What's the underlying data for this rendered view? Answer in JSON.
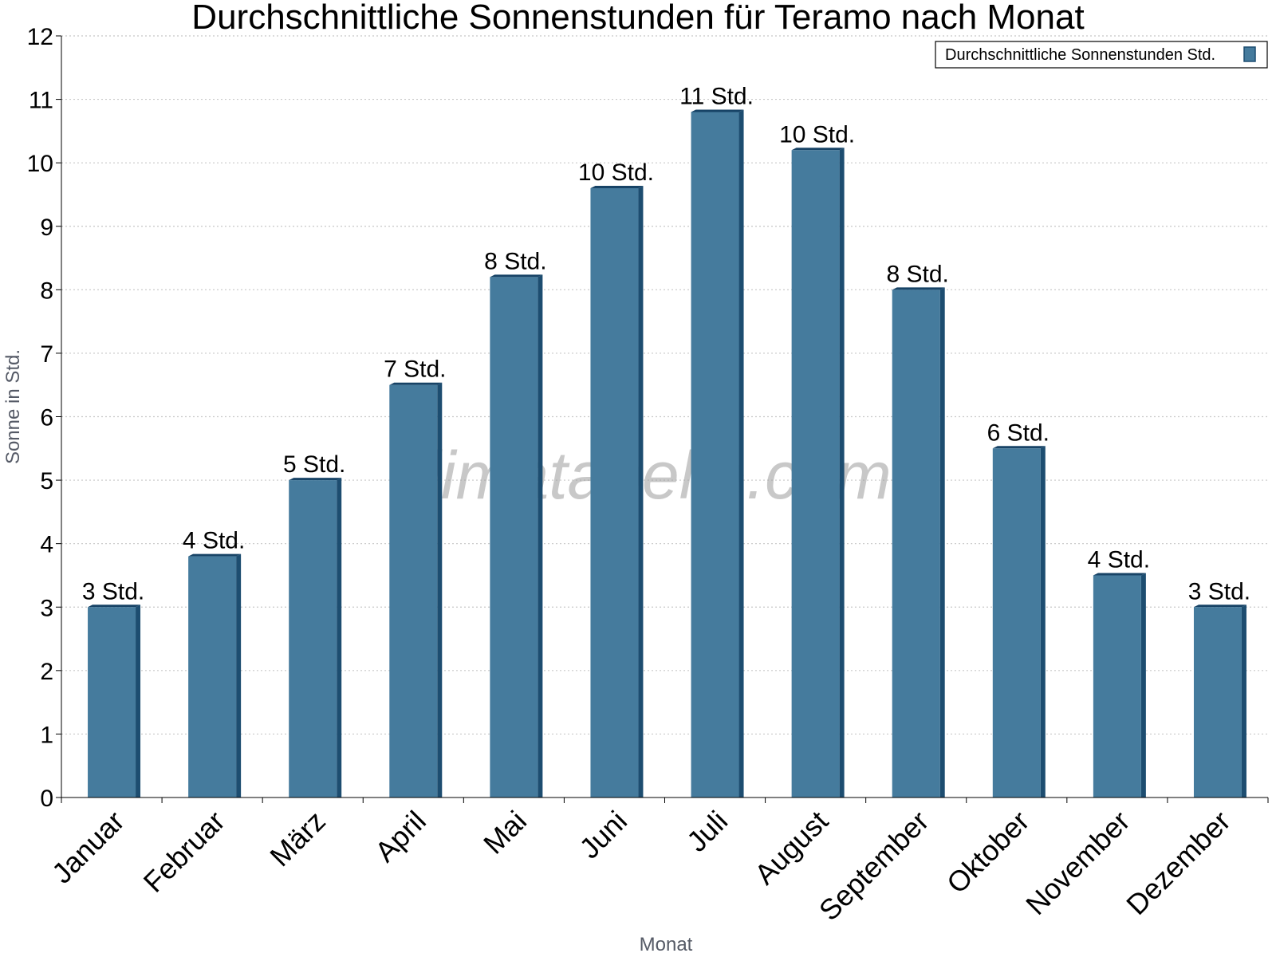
{
  "watermark": "klimatabelle.com",
  "colors": {
    "bar": "#457b9d",
    "bar_side": "#1d4d70",
    "bar_top": "#174366",
    "grid": "#c8c8c8"
  },
  "chart_data": {
    "type": "bar",
    "title": "Durchschnittliche Sonnenstunden für Teramo nach Monat",
    "xlabel": "Monat",
    "ylabel": "Sonne in Std.",
    "ylim": [
      0,
      12
    ],
    "yticks": [
      0,
      1,
      2,
      3,
      4,
      5,
      6,
      7,
      8,
      9,
      10,
      11,
      12
    ],
    "grid": true,
    "legend_position": "top-right",
    "categories": [
      "Januar",
      "Februar",
      "März",
      "April",
      "Mai",
      "Juni",
      "Juli",
      "August",
      "September",
      "Oktober",
      "November",
      "Dezember"
    ],
    "series": [
      {
        "name": "Durchschnittliche Sonnenstunden Std.",
        "values": [
          3.0,
          3.8,
          5.0,
          6.5,
          8.2,
          9.6,
          10.8,
          10.2,
          8.0,
          5.5,
          3.5,
          3.0
        ],
        "labels": [
          "3 Std.",
          "4 Std.",
          "5 Std.",
          "7 Std.",
          "8 Std.",
          "10 Std.",
          "11 Std.",
          "10 Std.",
          "8 Std.",
          "6 Std.",
          "4 Std.",
          "3 Std."
        ]
      }
    ]
  }
}
